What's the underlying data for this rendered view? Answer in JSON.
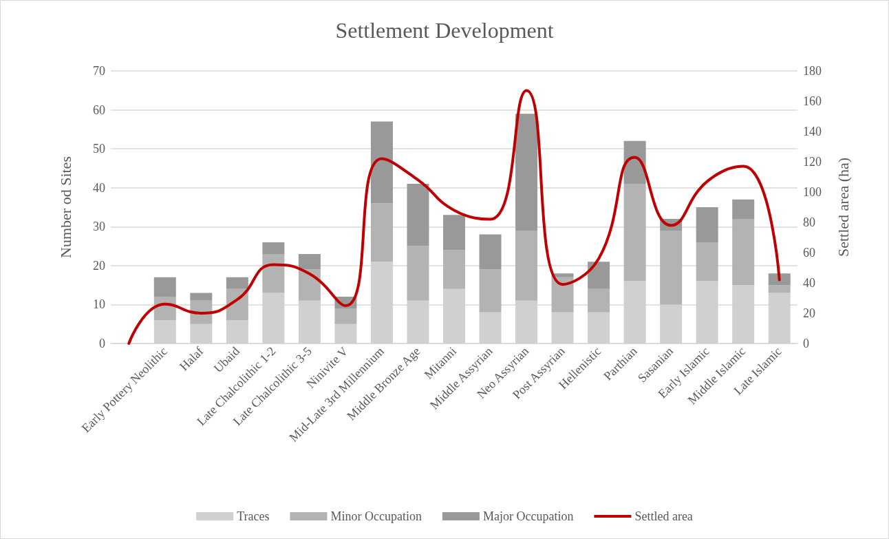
{
  "chart_data": {
    "type": "bar",
    "title": "Settlement Development",
    "ylabel": "Number od Sites",
    "y2label": "Settled area (ha)",
    "categories": [
      null,
      "Early Pottery Neolithic",
      "Halaf",
      "Ubaid",
      "Late Chalcolithic 1-2",
      "Late Chalcolithic 3-5",
      "Ninivite V",
      "Mid-Late 3rd Millennium",
      "Middle Bronze Age",
      "Mitanni",
      "Middle Assyrian",
      "Neo Assyrian",
      "Post Assyrian",
      "Hellenistic",
      "Parthian",
      "Sasanian",
      "Early Islamic",
      "Middle Islamic",
      "Late Islamic"
    ],
    "stacked": true,
    "series": [
      {
        "name": "Traces",
        "color": "#d0d0d0",
        "values": [
          null,
          6,
          5,
          6,
          13,
          11,
          5,
          21,
          11,
          14,
          8,
          11,
          8,
          8,
          16,
          10,
          16,
          15,
          13
        ]
      },
      {
        "name": "Minor Occupation",
        "color": "#b3b3b3",
        "values": [
          null,
          6,
          6,
          8,
          10,
          8,
          4,
          15,
          14,
          10,
          11,
          18,
          9,
          6,
          25,
          19,
          10,
          17,
          2
        ]
      },
      {
        "name": "Major Occupation",
        "color": "#999999",
        "values": [
          null,
          5,
          2,
          3,
          3,
          4,
          3,
          21,
          16,
          9,
          9,
          30,
          1,
          7,
          11,
          3,
          9,
          5,
          3
        ]
      },
      {
        "name": "Settled area",
        "type": "line",
        "axis": "y2",
        "color": "#c00000",
        "values": [
          0,
          26,
          20,
          29,
          52,
          46,
          25,
          122,
          108,
          88,
          82,
          167,
          39,
          56,
          123,
          78,
          107,
          117,
          42
        ]
      }
    ],
    "ylim": [
      0,
      70
    ],
    "yticks": [
      0,
      10,
      20,
      30,
      40,
      50,
      60,
      70
    ],
    "y2lim": [
      0,
      180
    ],
    "y2ticks": [
      0,
      20,
      40,
      60,
      80,
      100,
      120,
      140,
      160,
      180
    ],
    "grid": "y",
    "legend": "bottom",
    "marker": "none",
    "line_style": "solid"
  }
}
